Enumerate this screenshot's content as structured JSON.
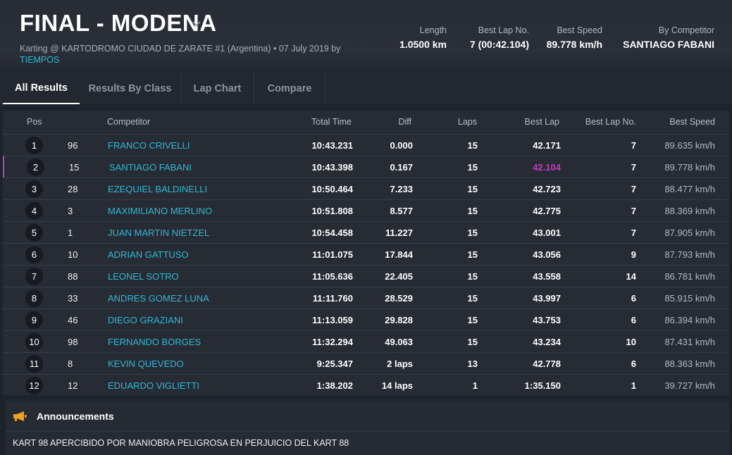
{
  "event": {
    "title": "FINAL - MODENA",
    "subtitle_main": "Karting @ KARTODROMO CIUDAD DE ZARATE #1 (Argentina) • 07 July 2019 by",
    "subtitle_link": "TIEMPOS"
  },
  "stats": {
    "length_label": "Length",
    "length_value": "1.0500 km",
    "bestlapno_label": "Best Lap No.",
    "bestlapno_value": "7 (00:42.104)",
    "bestspeed_label": "Best Speed",
    "bestspeed_value": "89.778 km/h",
    "bycomp_label": "By Competitor",
    "bycomp_value": "SANTIAGO FABANI"
  },
  "tabs": [
    "All Results",
    "Results By Class",
    "Lap Chart",
    "Compare"
  ],
  "table": {
    "headers": {
      "pos": "Pos",
      "competitor": "Competitor",
      "total": "Total Time",
      "diff": "Diff",
      "laps": "Laps",
      "best": "Best Lap",
      "bestno": "Best Lap No.",
      "speed": "Best Speed"
    },
    "rows": [
      {
        "pos": "1",
        "num": "96",
        "name": "FRANCO CRIVELLI",
        "total": "10:43.231",
        "diff": "0.000",
        "laps": "15",
        "best": "42.171",
        "bestno": "7",
        "speed": "89.635 km/h"
      },
      {
        "pos": "2",
        "num": "15",
        "name": "SANTIAGO FABANI",
        "total": "10:43.398",
        "diff": "0.167",
        "laps": "15",
        "best": "42.104",
        "bestno": "7",
        "speed": "89.778 km/h"
      },
      {
        "pos": "3",
        "num": "28",
        "name": "EZEQUIEL BALDINELLI",
        "total": "10:50.464",
        "diff": "7.233",
        "laps": "15",
        "best": "42.723",
        "bestno": "7",
        "speed": "88.477 km/h"
      },
      {
        "pos": "4",
        "num": "3",
        "name": "MAXIMILIANO MERLINO",
        "total": "10:51.808",
        "diff": "8.577",
        "laps": "15",
        "best": "42.775",
        "bestno": "7",
        "speed": "88.369 km/h"
      },
      {
        "pos": "5",
        "num": "1",
        "name": "JUAN MARTIN NIETZEL",
        "total": "10:54.458",
        "diff": "11.227",
        "laps": "15",
        "best": "43.001",
        "bestno": "7",
        "speed": "87.905 km/h"
      },
      {
        "pos": "6",
        "num": "10",
        "name": "ADRIAN GATTUSO",
        "total": "11:01.075",
        "diff": "17.844",
        "laps": "15",
        "best": "43.056",
        "bestno": "9",
        "speed": "87.793 km/h"
      },
      {
        "pos": "7",
        "num": "88",
        "name": "LEONEL SOTRO",
        "total": "11:05.636",
        "diff": "22.405",
        "laps": "15",
        "best": "43.558",
        "bestno": "14",
        "speed": "86.781 km/h"
      },
      {
        "pos": "8",
        "num": "33",
        "name": "ANDRES GOMEZ LUNA",
        "total": "11:11.760",
        "diff": "28.529",
        "laps": "15",
        "best": "43.997",
        "bestno": "6",
        "speed": "85.915 km/h"
      },
      {
        "pos": "9",
        "num": "46",
        "name": "DIEGO GRAZIANI",
        "total": "11:13.059",
        "diff": "29.828",
        "laps": "15",
        "best": "43.753",
        "bestno": "6",
        "speed": "86.394 km/h"
      },
      {
        "pos": "10",
        "num": "98",
        "name": "FERNANDO BORGES",
        "total": "11:32.294",
        "diff": "49.063",
        "laps": "15",
        "best": "43.234",
        "bestno": "10",
        "speed": "87.431 km/h"
      },
      {
        "pos": "11",
        "num": "8",
        "name": "KEVIN QUEVEDO",
        "total": "9:25.347",
        "diff": "2 laps",
        "laps": "13",
        "best": "42.778",
        "bestno": "6",
        "speed": "88.363 km/h"
      },
      {
        "pos": "12",
        "num": "12",
        "name": "EDUARDO VIGLIETTI",
        "total": "1:38.202",
        "diff": "14 laps",
        "laps": "1",
        "best": "1:35.150",
        "bestno": "1",
        "speed": "39.727 km/h"
      }
    ]
  },
  "announcements": {
    "title": "Announcements",
    "text": "KART 98 APERCIBIDO POR MANIOBRA PELIGROSA EN PERJUICIO DEL KART 88"
  },
  "colors": {
    "accent": "#2fb8d8",
    "best_lap": "#c23cc6",
    "megaphone": "#f0a020"
  },
  "icons": {
    "title_dropdown": "chevron-down-icon",
    "announcements": "megaphone-icon"
  }
}
